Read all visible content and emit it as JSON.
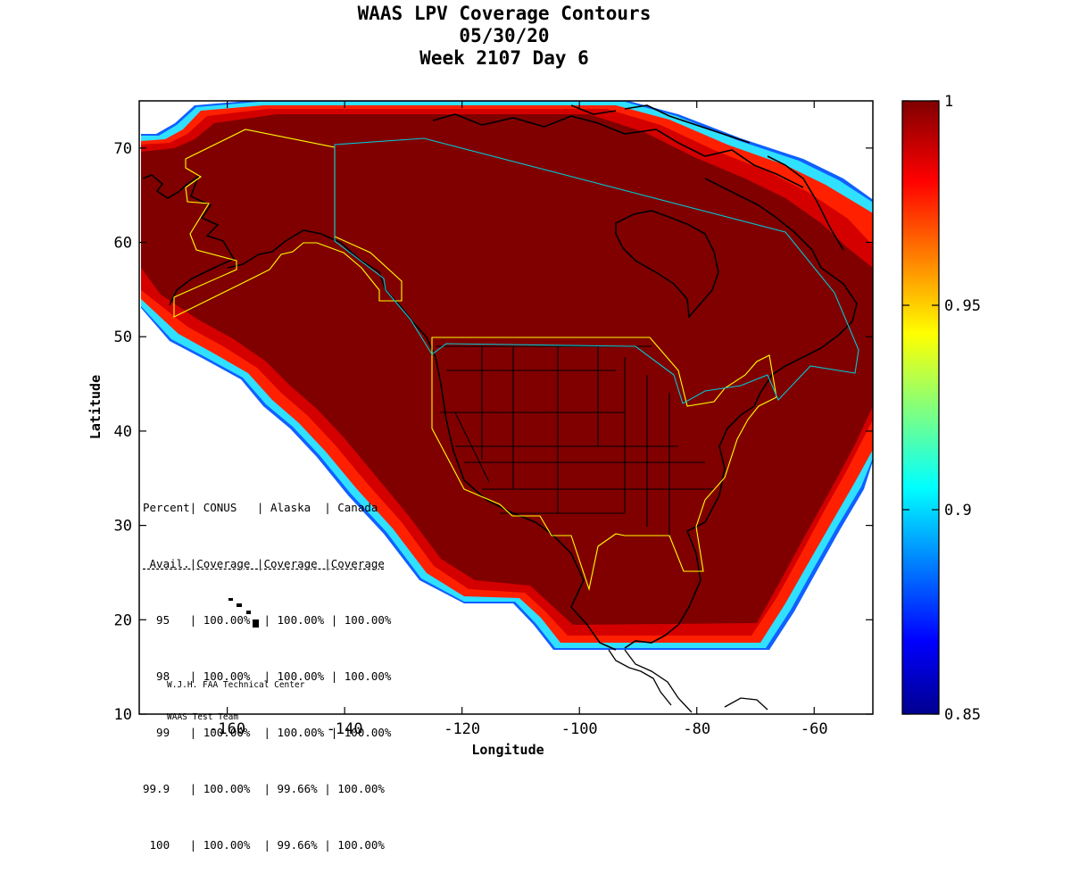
{
  "title": {
    "line1": "WAAS LPV Coverage Contours",
    "line2": "05/30/20",
    "line3": "Week 2107 Day 6"
  },
  "axes": {
    "xlabel": "Longitude",
    "ylabel": "Latitude",
    "x_range": [
      -175,
      -50
    ],
    "y_range": [
      10,
      75
    ],
    "x_ticks": [
      -160,
      -140,
      -120,
      -100,
      -80,
      -60
    ],
    "y_ticks": [
      10,
      20,
      30,
      40,
      50,
      60,
      70
    ]
  },
  "colorbar": {
    "range": [
      0.85,
      1
    ],
    "ticks": [
      "1",
      "0.95",
      "0.9",
      "0.85"
    ],
    "tick_values": [
      1,
      0.95,
      0.9,
      0.85
    ],
    "colormap": "jet",
    "colors": [
      "#00008f",
      "#0000ff",
      "#00ffff",
      "#ffff00",
      "#ff0000",
      "#800000"
    ]
  },
  "map_colors": {
    "fill_core": "#800000",
    "fill_edge": "#d40000",
    "fill_mid": "#ff2000",
    "coastline": "#000000",
    "region_conus_alaska": "#ffff00",
    "region_canada": "#00c8d2"
  },
  "stats_table": {
    "header1": "Percent| CONUS   | Alaska  | Canada",
    "header2": " Avail.|Coverage |Coverage |Coverage",
    "rows": [
      "  95   | 100.00%  | 100.00% | 100.00%",
      "  98   | 100.00%  | 100.00% | 100.00%",
      "  99   | 100.00%  | 100.00% | 100.00%",
      "99.9   | 100.00%  | 99.66% | 100.00%",
      " 100   | 100.00%  | 99.66% | 100.00%"
    ]
  },
  "credit": {
    "line1": "W.J.H. FAA Technical Center",
    "line2": "WAAS Test Team"
  }
}
